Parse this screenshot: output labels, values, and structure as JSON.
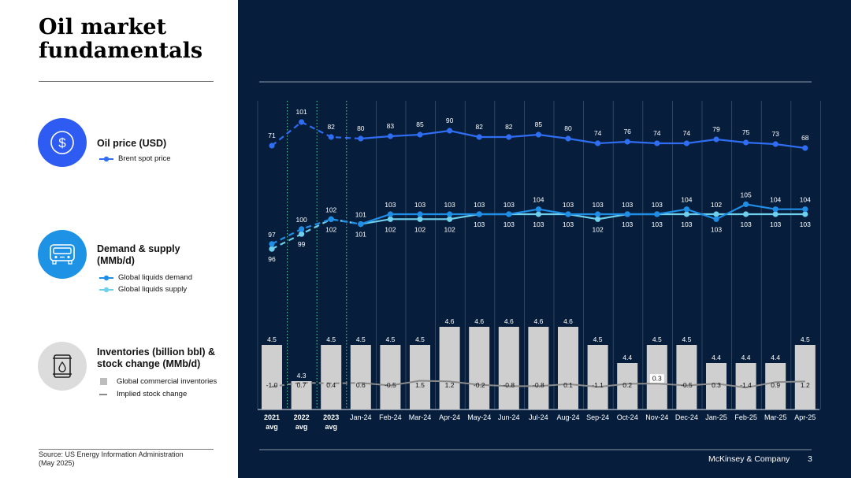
{
  "header": {
    "title": "Oil market fundamentals"
  },
  "sections": {
    "price": {
      "title": "Oil price (USD)",
      "legend": "Brent spot price"
    },
    "demand": {
      "title_line1": "Demand & supply",
      "title_line2": "(MMb/d)",
      "legend_demand": "Global liquids demand",
      "legend_supply": "Global liquids supply"
    },
    "inventory": {
      "title_line1": "Inventories (billion bbl) &",
      "title_line2": "stock change (MMb/d)",
      "legend_inventories": "Global commercial inventories",
      "legend_stock": "Implied stock change"
    }
  },
  "icons": {
    "price": "dollar-icon",
    "demand": "vehicle-icon",
    "inventory": "oil-barrel-icon"
  },
  "source": {
    "line1": "Source: US Energy Information Administration",
    "line2": "(May 2025)"
  },
  "footer": {
    "brand": "McKinsey & Company",
    "page": "3"
  },
  "colors": {
    "background": "#061e3c",
    "brent": "#2f6df2",
    "demand": "#1f8ee6",
    "supply": "#6fd0ee",
    "bars": "#cfcfcf",
    "stock": "#8a8a8a",
    "price_icon": "#2e5cf2",
    "demand_icon": "#1e93e6",
    "inventory_icon": "#dcdcdc"
  },
  "chart_data": {
    "type": "line+bar",
    "categories": [
      [
        "2021",
        "avg"
      ],
      [
        "2022",
        "avg"
      ],
      [
        "2023",
        "avg"
      ],
      [
        "Jan-24"
      ],
      [
        "Feb-24"
      ],
      [
        "Mar-24"
      ],
      [
        "Apr-24"
      ],
      [
        "May-24"
      ],
      [
        "Jun-24"
      ],
      [
        "Jul-24"
      ],
      [
        "Aug-24"
      ],
      [
        "Sep-24"
      ],
      [
        "Oct-24"
      ],
      [
        "Nov-24"
      ],
      [
        "Dec-24"
      ],
      [
        "Jan-25"
      ],
      [
        "Feb-25"
      ],
      [
        "Mar-25"
      ],
      [
        "Apr-25"
      ]
    ],
    "annual_count": 3,
    "series": [
      {
        "name": "Brent spot price",
        "unit": "USD",
        "values": [
          71,
          101,
          82,
          80,
          83,
          85,
          90,
          82,
          82,
          85,
          80,
          74,
          76,
          74,
          74,
          79,
          75,
          73,
          68
        ]
      },
      {
        "name": "Global liquids demand",
        "unit": "MMb/d",
        "values": [
          97,
          100,
          102,
          101,
          103,
          103,
          103,
          103,
          103,
          104,
          103,
          103,
          103,
          103,
          104,
          102,
          105,
          104,
          104
        ]
      },
      {
        "name": "Global liquids supply",
        "unit": "MMb/d",
        "values": [
          96,
          99,
          102,
          101,
          102,
          102,
          102,
          103,
          103,
          103,
          103,
          102,
          103,
          103,
          103,
          103,
          103,
          103,
          103
        ]
      },
      {
        "name": "Global commercial inventories",
        "unit": "billion bbl",
        "values": [
          4.5,
          4.3,
          4.5,
          4.5,
          4.5,
          4.5,
          4.6,
          4.6,
          4.6,
          4.6,
          4.6,
          4.5,
          4.4,
          4.5,
          4.5,
          4.4,
          4.4,
          4.4,
          4.5
        ]
      },
      {
        "name": "Implied stock change",
        "unit": "MMb/d",
        "values": [
          -1.0,
          0.7,
          0.4,
          0.6,
          -0.5,
          1.5,
          1.2,
          -0.2,
          -0.8,
          -0.8,
          0.1,
          -1.1,
          0.2,
          0.3,
          -0.5,
          0.3,
          -1.4,
          0.9,
          1.2
        ]
      }
    ]
  }
}
